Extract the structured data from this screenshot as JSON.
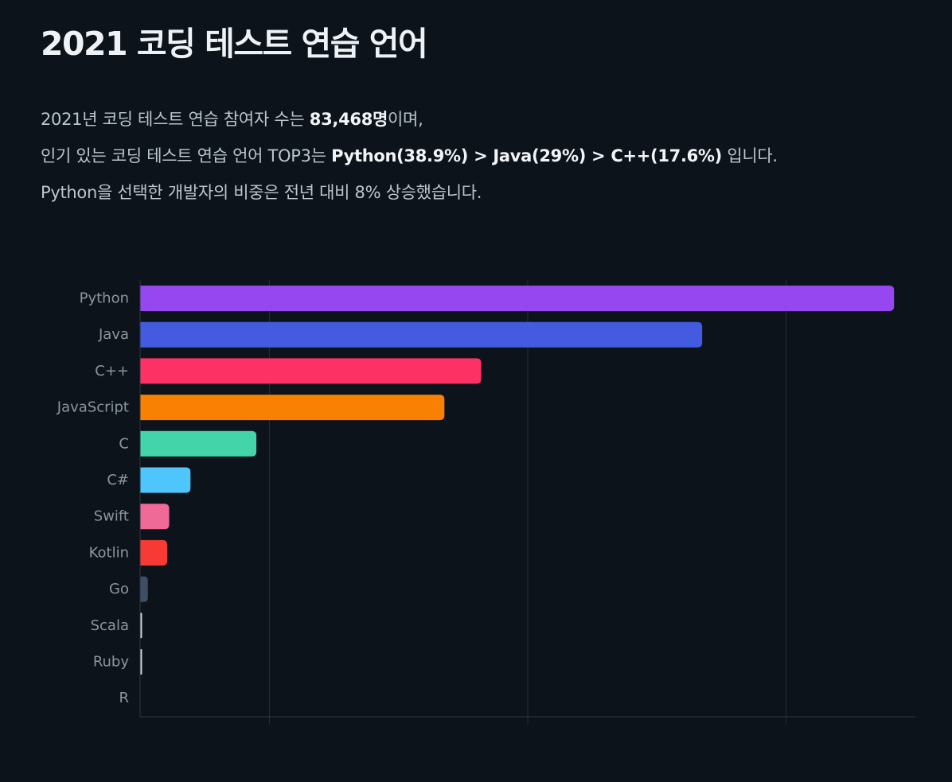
{
  "title": "2021 코딩 테스트 연습 언어",
  "summary": {
    "line1": {
      "pre": "2021년 코딩 테스트 연습 참여자 수는 ",
      "bold": "83,468명",
      "post": "이며,"
    },
    "line2": {
      "pre": "인기 있는 코딩 테스트 연습 언어 TOP3는 ",
      "bold": "Python(38.9%) > Java(29%) > C++(17.6%)",
      "post": " 입니다."
    },
    "line3": "Python을 선택한 개발자의 비중은 전년 대비 8% 상승했습니다."
  },
  "chart_data": {
    "type": "bar",
    "orientation": "horizontal",
    "categories": [
      "Python",
      "Java",
      "C++",
      "JavaScript",
      "C",
      "C#",
      "Swift",
      "Kotlin",
      "Go",
      "Scala",
      "Ruby",
      "R"
    ],
    "values": [
      38.9,
      29.0,
      17.6,
      15.7,
      6.0,
      2.6,
      1.5,
      1.4,
      0.4,
      0.1,
      0.1,
      0.0
    ],
    "colors": [
      "#9747f0",
      "#425bdf",
      "#fd3163",
      "#f88003",
      "#43d4aa",
      "#4ec6fb",
      "#f06a97",
      "#f83a34",
      "#3e4f63",
      "#d0d6de",
      "#d0d6de",
      "#d0d6de"
    ],
    "xlim": [
      0,
      40
    ],
    "gridlines": [
      6.67,
      20,
      33.33
    ],
    "grid": true,
    "legend": "none",
    "title": "",
    "xlabel": "",
    "ylabel": ""
  }
}
